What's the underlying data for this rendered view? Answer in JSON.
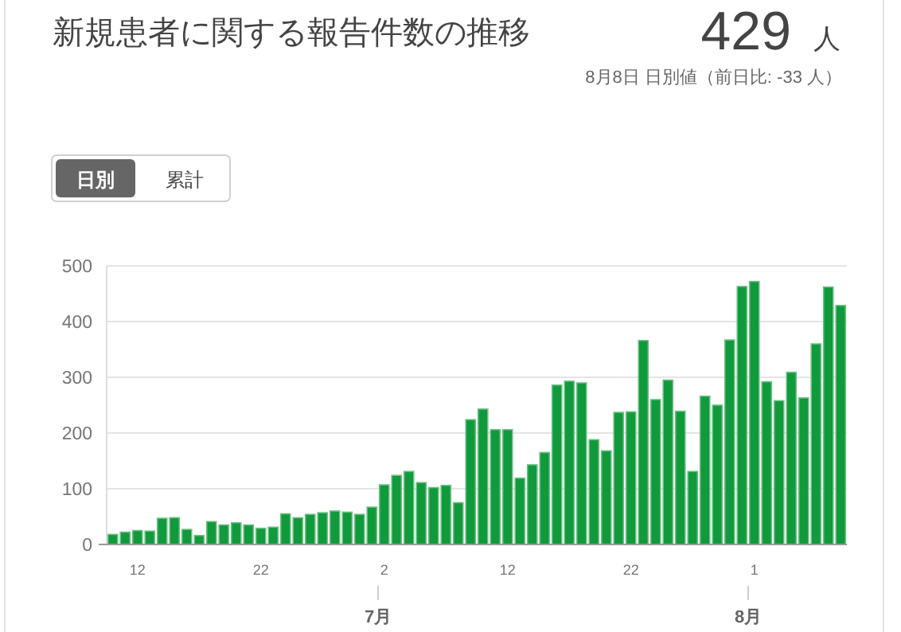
{
  "chart_data": {
    "type": "bar",
    "title": "新規患者に関する報告件数の推移",
    "annotations": [
      "429",
      "人",
      "8月8日 日別値（前日比: -33 人）",
      "日別",
      "累計",
      "7月",
      "8月"
    ],
    "categories": [
      null,
      null,
      "12",
      null,
      null,
      null,
      null,
      null,
      null,
      null,
      null,
      null,
      "22",
      null,
      null,
      null,
      null,
      null,
      null,
      null,
      null,
      null,
      "2",
      null,
      null,
      null,
      null,
      null,
      null,
      null,
      null,
      null,
      "12",
      null,
      null,
      null,
      null,
      null,
      null,
      null,
      null,
      null,
      "22",
      null,
      null,
      null,
      null,
      null,
      null,
      null,
      null,
      null,
      "1",
      null,
      null,
      null,
      null,
      null,
      null,
      null
    ],
    "values": [
      18,
      22,
      25,
      24,
      47,
      48,
      27,
      16,
      41,
      35,
      39,
      35,
      29,
      31,
      55,
      48,
      54,
      57,
      60,
      58,
      54,
      67,
      107,
      124,
      131,
      111,
      102,
      106,
      75,
      224,
      243,
      206,
      206,
      119,
      143,
      165,
      286,
      293,
      290,
      188,
      168,
      237,
      238,
      366,
      260,
      295,
      239,
      131,
      266,
      250,
      367,
      463,
      472,
      292,
      258,
      309,
      263,
      360,
      462,
      429
    ],
    "color": "#109a3c",
    "ylim": [
      0,
      500
    ],
    "yticks": [
      0,
      100,
      200,
      300,
      400,
      500
    ],
    "grid": "y"
  }
}
